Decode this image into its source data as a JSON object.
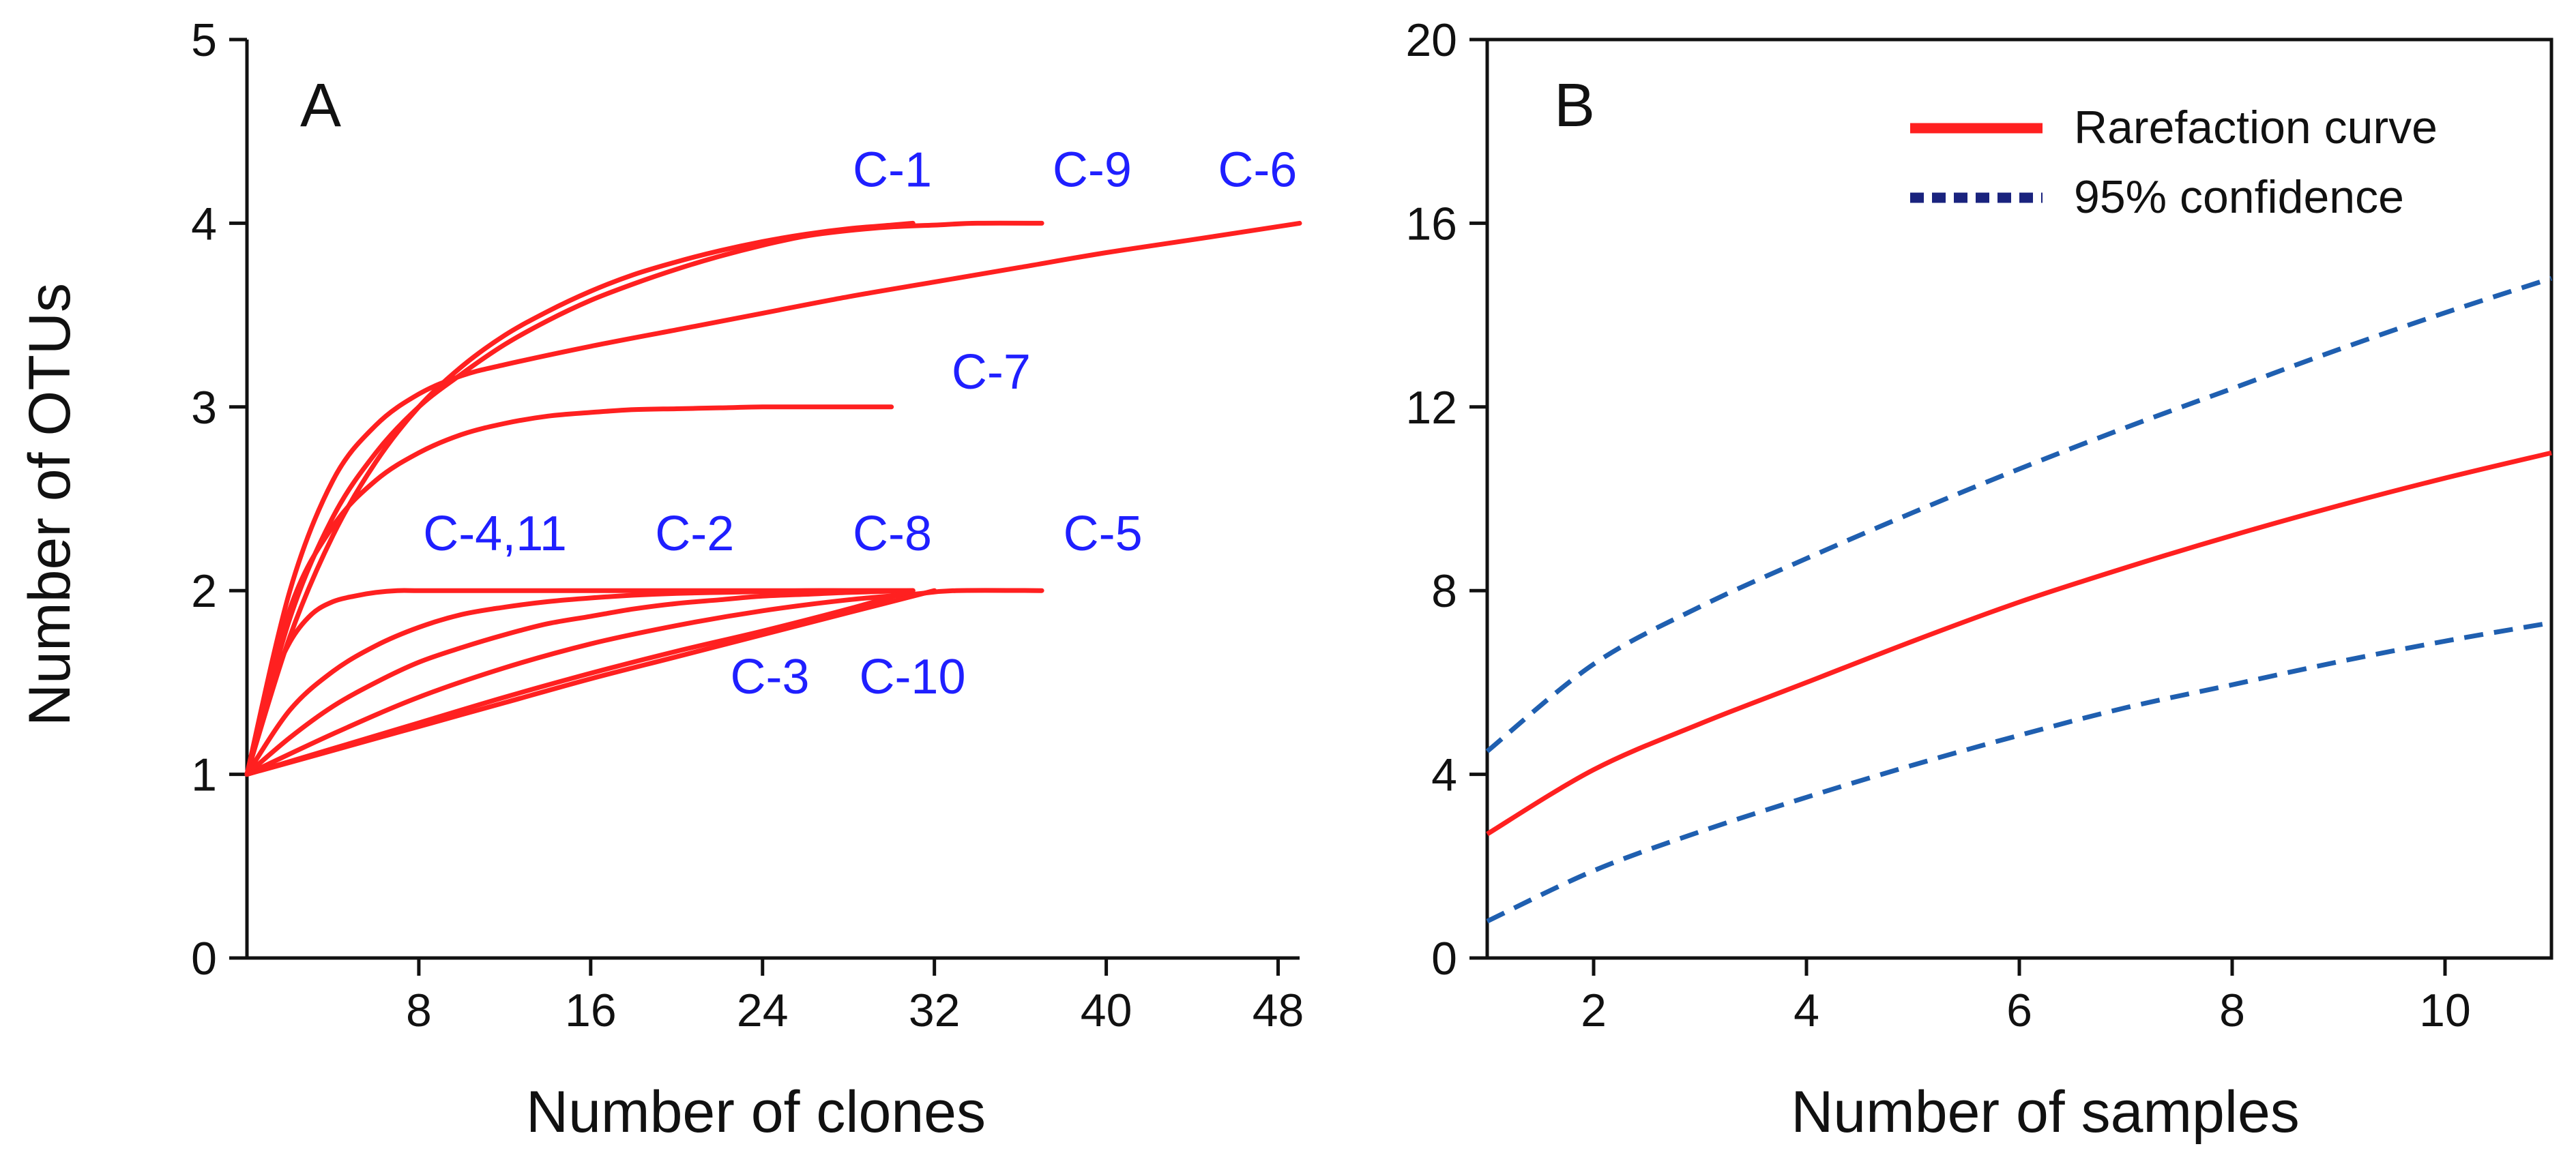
{
  "chart_data": [
    {
      "panel": "A",
      "type": "line",
      "xlabel": "Number of clones",
      "ylabel": "Number of OTUs",
      "xlim": [
        0,
        49
      ],
      "ylim": [
        0,
        5
      ],
      "xticks": [
        8,
        16,
        24,
        32,
        40,
        48
      ],
      "yticks": [
        0,
        1,
        2,
        3,
        4,
        5
      ],
      "line_color": "#ff2020",
      "label_color": "#1f1fff",
      "series": [
        {
          "name": "C-1",
          "x": [
            0,
            2,
            4,
            6,
            8,
            10,
            12,
            14,
            16,
            18,
            20,
            22,
            24,
            26,
            28,
            30,
            31
          ],
          "y": [
            1,
            1.75,
            2.3,
            2.7,
            3.0,
            3.22,
            3.39,
            3.52,
            3.63,
            3.72,
            3.79,
            3.85,
            3.9,
            3.94,
            3.97,
            3.99,
            4.0
          ]
        },
        {
          "name": "C-9",
          "x": [
            0,
            2,
            4,
            6,
            8,
            10,
            12,
            14,
            16,
            18,
            20,
            22,
            24,
            26,
            28,
            30,
            32,
            34,
            37
          ],
          "y": [
            1,
            1.85,
            2.4,
            2.75,
            3.0,
            3.18,
            3.34,
            3.47,
            3.58,
            3.67,
            3.75,
            3.82,
            3.88,
            3.93,
            3.96,
            3.98,
            3.99,
            4.0,
            4.0
          ]
        },
        {
          "name": "C-6",
          "x": [
            0,
            2,
            4,
            6,
            8,
            10,
            12,
            16,
            20,
            24,
            28,
            32,
            36,
            40,
            44,
            49
          ],
          "y": [
            1,
            2.0,
            2.6,
            2.9,
            3.07,
            3.17,
            3.23,
            3.33,
            3.42,
            3.51,
            3.6,
            3.68,
            3.76,
            3.84,
            3.91,
            4.0
          ]
        },
        {
          "name": "C-7",
          "x": [
            0,
            2,
            4,
            6,
            8,
            10,
            12,
            14,
            16,
            18,
            20,
            22,
            24,
            26,
            28,
            30
          ],
          "y": [
            1,
            1.9,
            2.35,
            2.6,
            2.75,
            2.85,
            2.91,
            2.95,
            2.97,
            2.985,
            2.99,
            2.995,
            3.0,
            3.0,
            3.0,
            3.0
          ]
        },
        {
          "name": "C-4,11",
          "x": [
            0,
            1,
            2,
            3,
            4,
            5,
            6,
            7,
            8,
            10,
            14,
            20,
            26,
            31
          ],
          "y": [
            1,
            1.45,
            1.72,
            1.87,
            1.94,
            1.97,
            1.99,
            2.0,
            2.0,
            2.0,
            2.0,
            2.0,
            2.0,
            2.0
          ]
        },
        {
          "name": "C-2",
          "x": [
            0,
            2,
            4,
            6,
            8,
            10,
            12,
            14,
            16,
            18,
            20,
            22,
            24,
            26,
            28,
            31
          ],
          "y": [
            1,
            1.35,
            1.56,
            1.7,
            1.8,
            1.87,
            1.91,
            1.94,
            1.96,
            1.975,
            1.985,
            1.99,
            1.995,
            2.0,
            2.0,
            2.0
          ]
        },
        {
          "name": "C-8",
          "x": [
            0,
            2,
            4,
            6,
            8,
            10,
            12,
            14,
            16,
            18,
            20,
            22,
            24,
            26,
            28,
            31
          ],
          "y": [
            1,
            1.2,
            1.37,
            1.5,
            1.61,
            1.69,
            1.76,
            1.82,
            1.86,
            1.9,
            1.93,
            1.95,
            1.97,
            1.98,
            1.99,
            2.0
          ]
        },
        {
          "name": "C-5",
          "x": [
            0,
            4,
            8,
            12,
            16,
            20,
            24,
            28,
            31,
            33,
            37
          ],
          "y": [
            1,
            1.22,
            1.42,
            1.58,
            1.71,
            1.81,
            1.89,
            1.95,
            1.98,
            2.0,
            2.0
          ]
        },
        {
          "name": "C-3",
          "x": [
            0,
            4,
            8,
            12,
            16,
            20,
            24,
            28,
            31
          ],
          "y": [
            1,
            1.14,
            1.28,
            1.42,
            1.55,
            1.67,
            1.78,
            1.9,
            2.0
          ]
        },
        {
          "name": "C-10",
          "x": [
            0,
            4,
            8,
            12,
            16,
            20,
            24,
            28,
            32
          ],
          "y": [
            1,
            1.13,
            1.26,
            1.39,
            1.52,
            1.64,
            1.76,
            1.88,
            2.0
          ]
        }
      ],
      "labels": [
        {
          "text": "C-1",
          "x": 28.2,
          "y": 4.2
        },
        {
          "text": "C-9",
          "x": 37.5,
          "y": 4.2
        },
        {
          "text": "C-6",
          "x": 45.2,
          "y": 4.2
        },
        {
          "text": "C-7",
          "x": 32.8,
          "y": 3.1
        },
        {
          "text": "C-4,11",
          "x": 8.2,
          "y": 2.22
        },
        {
          "text": "C-2",
          "x": 19.0,
          "y": 2.22
        },
        {
          "text": "C-8",
          "x": 28.2,
          "y": 2.22
        },
        {
          "text": "C-5",
          "x": 38.0,
          "y": 2.22
        },
        {
          "text": "C-3",
          "x": 22.5,
          "y": 1.44
        },
        {
          "text": "C-10",
          "x": 28.5,
          "y": 1.44
        }
      ]
    },
    {
      "panel": "B",
      "type": "line",
      "xlabel": "Number of samples",
      "ylabel": "",
      "xlim": [
        1,
        11
      ],
      "ylim": [
        0,
        20
      ],
      "xticks": [
        2,
        4,
        6,
        8,
        10
      ],
      "yticks": [
        0,
        4,
        8,
        12,
        16,
        20
      ],
      "series": [
        {
          "name": "Rarefaction curve",
          "style": "solid",
          "color": "#ff2020",
          "x": [
            1,
            2,
            3,
            4,
            5,
            6,
            7,
            8,
            9,
            10,
            11
          ],
          "y": [
            2.7,
            4.1,
            5.1,
            6.0,
            6.9,
            7.75,
            8.5,
            9.2,
            9.85,
            10.45,
            11.0
          ]
        },
        {
          "name": "95% confidence upper",
          "style": "dashed",
          "color": "#1f5fb0",
          "x": [
            1,
            2,
            3,
            4,
            5,
            6,
            7,
            8,
            9,
            10,
            11
          ],
          "y": [
            4.5,
            6.4,
            7.65,
            8.7,
            9.7,
            10.65,
            11.55,
            12.4,
            13.25,
            14.05,
            14.8
          ]
        },
        {
          "name": "95% confidence lower",
          "style": "dashed",
          "color": "#1f5fb0",
          "x": [
            1,
            2,
            3,
            4,
            5,
            6,
            7,
            8,
            9,
            10,
            11
          ],
          "y": [
            0.8,
            1.9,
            2.75,
            3.5,
            4.2,
            4.85,
            5.45,
            5.95,
            6.45,
            6.9,
            7.3
          ]
        }
      ],
      "legend": [
        {
          "label": "Rarefaction curve",
          "style": "solid",
          "color": "#ff2020"
        },
        {
          "label": "95% confidence",
          "style": "dotted",
          "color": "#1a237e"
        }
      ]
    }
  ]
}
